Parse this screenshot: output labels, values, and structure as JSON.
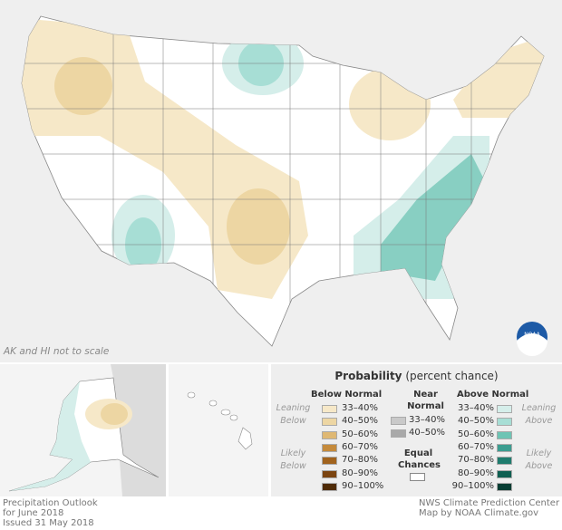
{
  "note": "AK and HI not to scale",
  "title_lines": [
    "Precipitation Outlook",
    "for June 2018",
    "Issued 31 May 2018"
  ],
  "credit_lines": [
    "NWS Climate Prediction Center",
    "Map by NOAA Climate.gov"
  ],
  "logo_text": "NOAA",
  "legend": {
    "title_bold": "Probability",
    "title_rest": " (percent chance)",
    "below_header": "Below Normal",
    "near_header": [
      "Near",
      "Normal"
    ],
    "above_header": "Above Normal",
    "leaning_below": [
      "Leaning",
      "Below"
    ],
    "likely_below": [
      "Likely",
      "Below"
    ],
    "leaning_above": [
      "Leaning",
      "Above"
    ],
    "likely_above": [
      "Likely",
      "Above"
    ],
    "equal_chances": [
      "Equal",
      "Chances"
    ],
    "below": [
      {
        "label": "33–40%",
        "color": "#f6e8c8"
      },
      {
        "label": "40–50%",
        "color": "#edd6a3"
      },
      {
        "label": "50–60%",
        "color": "#dfb873"
      },
      {
        "label": "60–70%",
        "color": "#c58a3b"
      },
      {
        "label": "70–80%",
        "color": "#a1631d"
      },
      {
        "label": "80–90%",
        "color": "#7b4410"
      },
      {
        "label": "90–100%",
        "color": "#4f2b06"
      }
    ],
    "near": [
      {
        "label": "33–40%",
        "color": "#c9c9c9"
      },
      {
        "label": "40–50%",
        "color": "#a9a9a9"
      }
    ],
    "above": [
      {
        "label": "33–40%",
        "color": "#d5eeea"
      },
      {
        "label": "40–50%",
        "color": "#a7ded5"
      },
      {
        "label": "50–60%",
        "color": "#6dc4b4"
      },
      {
        "label": "60–70%",
        "color": "#3b9d90"
      },
      {
        "label": "70–80%",
        "color": "#1f7c6e"
      },
      {
        "label": "80–90%",
        "color": "#0f5f51"
      },
      {
        "label": "90–100%",
        "color": "#063d33"
      }
    ]
  }
}
